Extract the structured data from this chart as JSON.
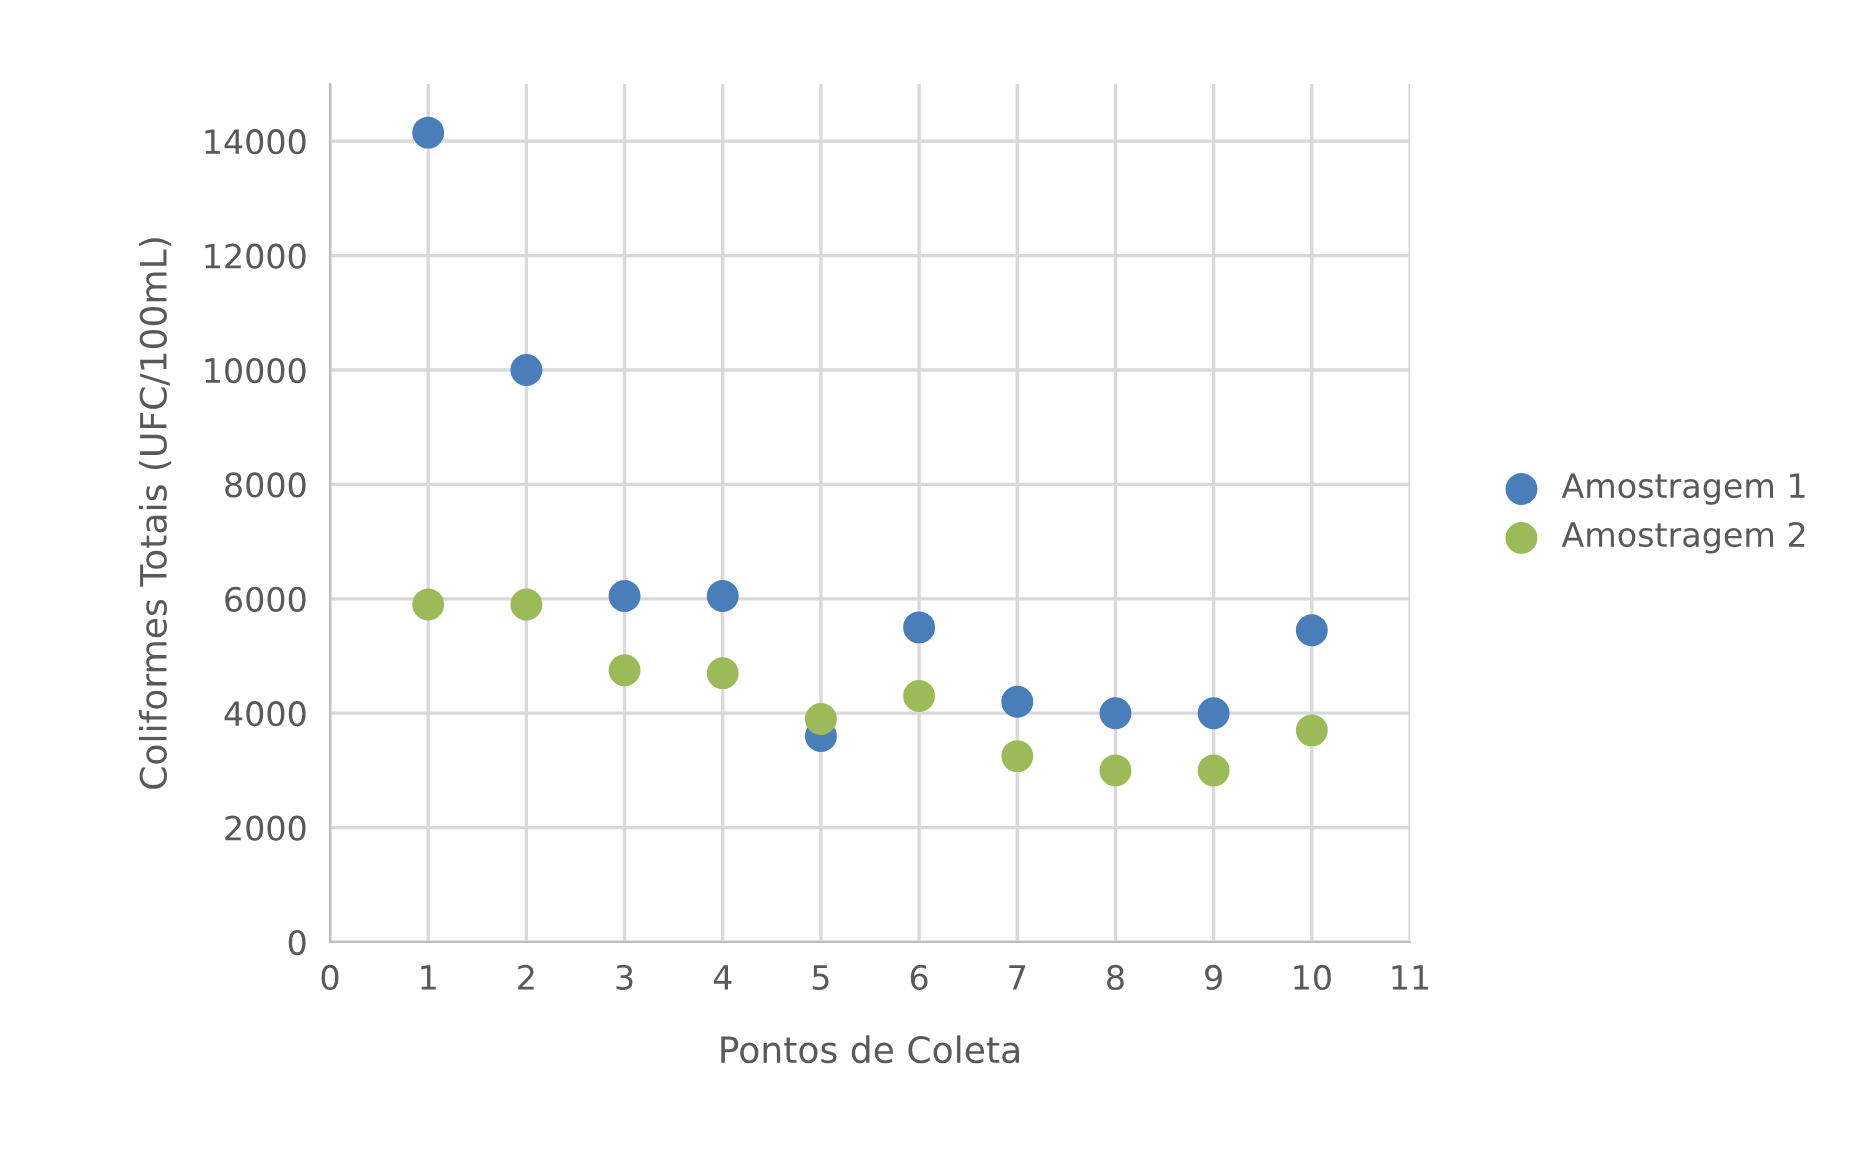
{
  "chart_data": {
    "type": "scatter",
    "xlabel": "Pontos de Coleta",
    "ylabel": "Coliformes Totais (UFC/100mL)",
    "x": [
      1,
      2,
      3,
      4,
      5,
      6,
      7,
      8,
      9,
      10
    ],
    "series": [
      {
        "name": "Amostragem 1",
        "color": "#4a7ebb",
        "values": [
          14150,
          10000,
          6050,
          6050,
          3600,
          5500,
          4200,
          4000,
          4000,
          5450
        ]
      },
      {
        "name": "Amostragem 2",
        "color": "#9bbb59",
        "values": [
          5900,
          5900,
          4750,
          4700,
          3900,
          4300,
          3250,
          3000,
          3000,
          3700
        ]
      }
    ],
    "xlim": [
      0,
      11
    ],
    "xticks": [
      0,
      1,
      2,
      3,
      4,
      5,
      6,
      7,
      8,
      9,
      10,
      11
    ],
    "ylim": [
      0,
      15000
    ],
    "yticks": [
      0,
      2000,
      4000,
      6000,
      8000,
      10000,
      12000,
      14000
    ],
    "grid": true,
    "legend": "right",
    "marker": "circle"
  }
}
